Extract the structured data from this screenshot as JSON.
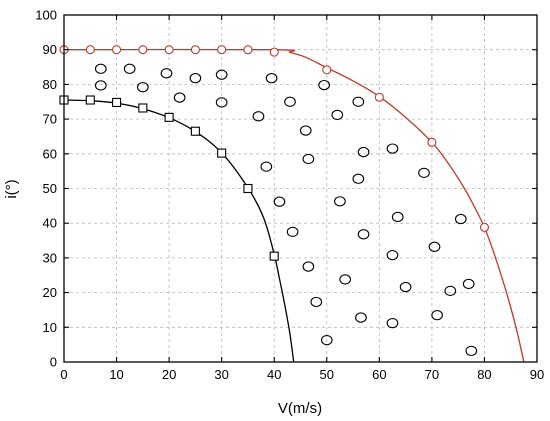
{
  "chart_data": {
    "type": "scatter",
    "title": "",
    "xlabel": "V(m/s)",
    "ylabel": "i(°)",
    "xlim": [
      0,
      90
    ],
    "ylim": [
      0,
      100
    ],
    "x_ticks": [
      "0",
      "10",
      "20",
      "30",
      "40",
      "50",
      "60",
      "70",
      "80",
      "90"
    ],
    "y_ticks": [
      "0",
      "10",
      "20",
      "30",
      "40",
      "50",
      "60",
      "70",
      "80",
      "90",
      "100"
    ],
    "grid": true,
    "legend": "none",
    "series": [
      {
        "marker": "square",
        "color": "#000000",
        "line": "smooth",
        "points": [
          [
            0,
            75.5
          ],
          [
            5,
            75.5
          ],
          [
            10,
            74.8
          ],
          [
            15,
            73.2
          ],
          [
            20,
            70.5
          ],
          [
            25,
            66.5
          ],
          [
            30,
            60.2
          ],
          [
            35,
            50.0
          ],
          [
            40,
            30.5
          ]
        ],
        "curve": [
          [
            0,
            75.5
          ],
          [
            5,
            75.3
          ],
          [
            10,
            74.6
          ],
          [
            15,
            73.0
          ],
          [
            20,
            70.4
          ],
          [
            25,
            66.4
          ],
          [
            30,
            60.3
          ],
          [
            35,
            50.2
          ],
          [
            38,
            41.5
          ],
          [
            40,
            31.0
          ],
          [
            41,
            24.0
          ],
          [
            42,
            16.5
          ],
          [
            43,
            8.0
          ],
          [
            43.7,
            0
          ]
        ]
      },
      {
        "marker": "circle",
        "color": "#c0392b",
        "line": "smooth",
        "points": [
          [
            0,
            90
          ],
          [
            5,
            90
          ],
          [
            10,
            90
          ],
          [
            15,
            90
          ],
          [
            20,
            90
          ],
          [
            25,
            90
          ],
          [
            30,
            90
          ],
          [
            35,
            90
          ],
          [
            40,
            89.3
          ],
          [
            50,
            84.2
          ],
          [
            60,
            76.3
          ],
          [
            70,
            63.3
          ],
          [
            80,
            38.8
          ]
        ],
        "curve": [
          [
            0,
            90
          ],
          [
            40,
            90
          ],
          [
            43,
            89.2
          ],
          [
            46,
            87.8
          ],
          [
            50,
            84.8
          ],
          [
            55,
            81.0
          ],
          [
            60,
            76.5
          ],
          [
            65,
            70.5
          ],
          [
            70,
            63.3
          ],
          [
            73,
            57.5
          ],
          [
            76,
            50.5
          ],
          [
            78,
            45.0
          ],
          [
            80,
            38.8
          ],
          [
            82,
            30.5
          ],
          [
            84,
            21.0
          ],
          [
            86,
            10.0
          ],
          [
            87.5,
            0
          ]
        ]
      },
      {
        "marker": "circle",
        "color": "#000000",
        "line": "none",
        "points": [
          [
            7,
            84.5
          ],
          [
            12.5,
            84.5
          ],
          [
            19.5,
            83.2
          ],
          [
            25,
            81.8
          ],
          [
            30,
            82.8
          ],
          [
            39.5,
            81.8
          ],
          [
            7,
            79.7
          ],
          [
            15,
            79.2
          ],
          [
            22,
            76.2
          ],
          [
            30,
            74.8
          ],
          [
            49.5,
            79.8
          ],
          [
            43,
            75.0
          ],
          [
            37,
            70.8
          ],
          [
            46,
            66.7
          ],
          [
            52,
            71.2
          ],
          [
            56,
            75.0
          ],
          [
            38.5,
            56.3
          ],
          [
            46.5,
            58.5
          ],
          [
            57,
            60.5
          ],
          [
            62.5,
            61.5
          ],
          [
            68.5,
            54.5
          ],
          [
            41,
            46.2
          ],
          [
            52.5,
            46.3
          ],
          [
            56,
            52.8
          ],
          [
            43.5,
            37.5
          ],
          [
            57,
            36.8
          ],
          [
            63.5,
            41.8
          ],
          [
            75.5,
            41.2
          ],
          [
            46.5,
            27.5
          ],
          [
            53.5,
            23.8
          ],
          [
            62.5,
            30.8
          ],
          [
            70.5,
            33.2
          ],
          [
            48,
            17.3
          ],
          [
            56.5,
            12.8
          ],
          [
            62.5,
            11.2
          ],
          [
            65,
            21.6
          ],
          [
            73.5,
            20.5
          ],
          [
            77,
            22.5
          ],
          [
            71,
            13.5
          ],
          [
            50,
            6.3
          ],
          [
            77.5,
            3.2
          ]
        ]
      }
    ]
  }
}
